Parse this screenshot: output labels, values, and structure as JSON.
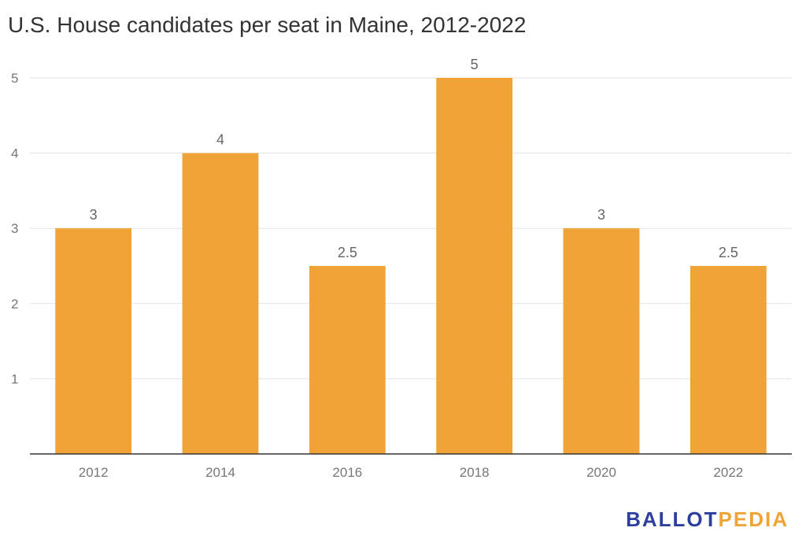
{
  "chart_data": {
    "type": "bar",
    "title": "U.S. House candidates per seat in Maine, 2012-2022",
    "categories": [
      "2012",
      "2014",
      "2016",
      "2018",
      "2020",
      "2022"
    ],
    "values": [
      3,
      4,
      2.5,
      5,
      3,
      2.5
    ],
    "data_labels": [
      "3",
      "4",
      "2.5",
      "5",
      "3",
      "2.5"
    ],
    "y_ticks": [
      1,
      2,
      3,
      4,
      5
    ],
    "ylim": [
      0,
      5
    ],
    "xlabel": "",
    "ylabel": "",
    "grid": true,
    "legend": "none",
    "bar_color": "#f0a337"
  },
  "branding": {
    "logo_part1": "BALLOT",
    "logo_part2": "PEDIA",
    "logo_color_primary": "#2d3f9c",
    "logo_color_accent": "#f0a337"
  }
}
